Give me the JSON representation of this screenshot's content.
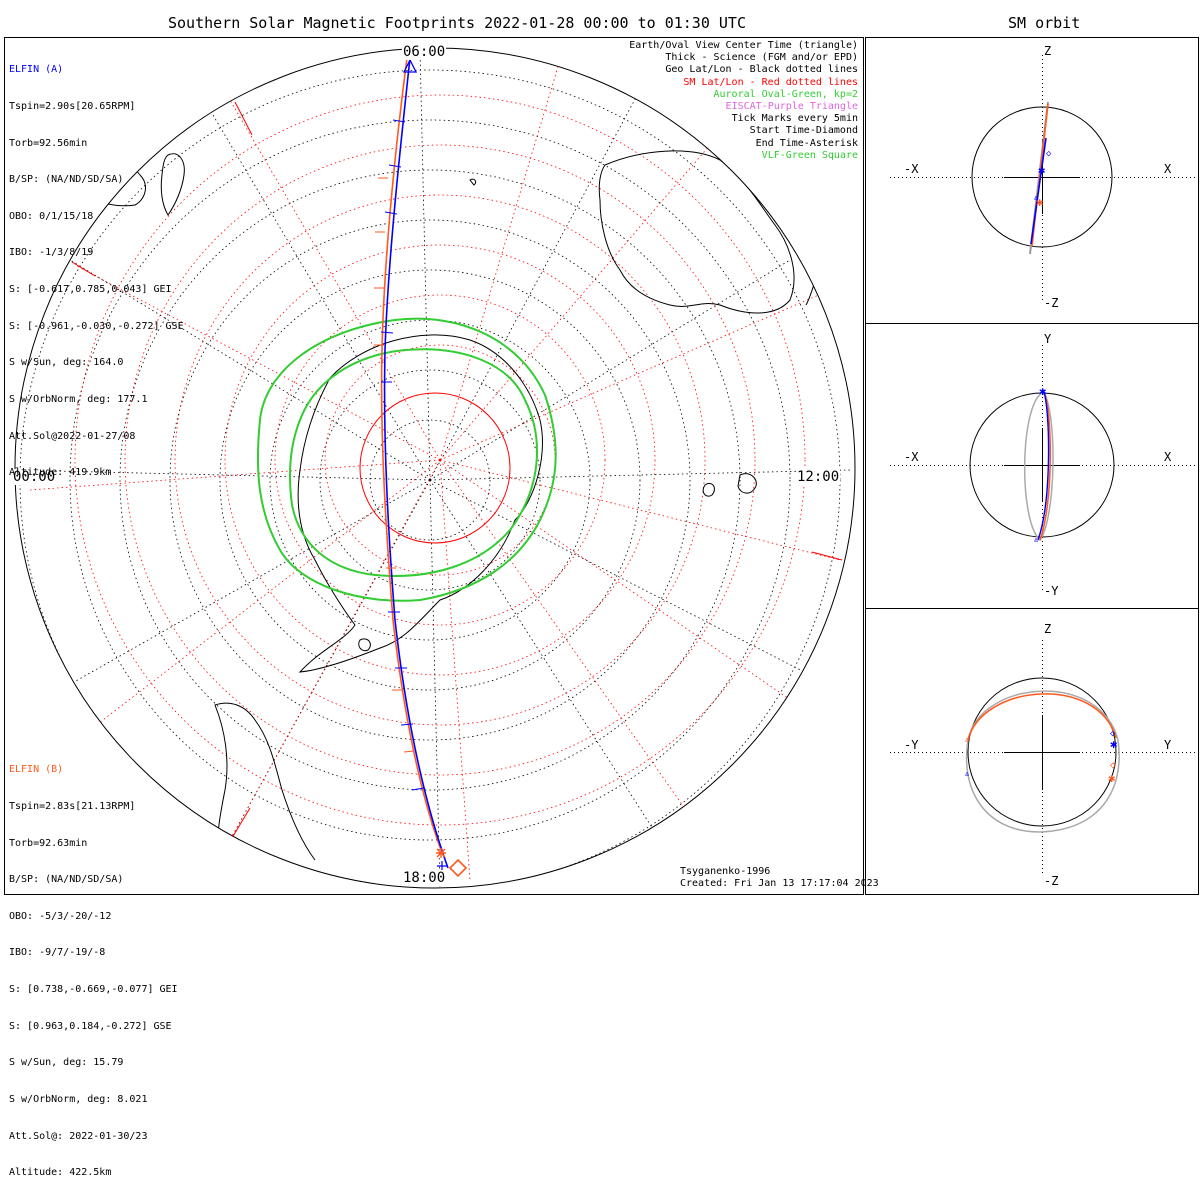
{
  "title": "Southern Solar Magnetic Footprints 2022-01-28 00:00 to 01:30 UTC",
  "orbit_title": "SM orbit",
  "time_labels": {
    "top": "06:00",
    "bottom": "18:00",
    "left": "00:00",
    "right": "12:00"
  },
  "elfin_a": {
    "name": "ELFIN (A)",
    "color": "#0000ff",
    "lines": [
      "Tspin=2.90s[20.65RPM]",
      "Torb=92.56min",
      "B/SP: (NA/ND/SD/SA)",
      "OBO: 0/1/15/18",
      "IBO: -1/3/8/19",
      "S: [-0.617,0.785,0.043] GEI",
      "S: [-0.961,-0.030,-0.272] GSE",
      "S w/Sun, deg: 164.0",
      "S w/OrbNorm, deg: 177.1",
      "Att.Sol@2022-01-27/08",
      "Altitude: 419.9km"
    ]
  },
  "elfin_b": {
    "name": "ELFIN (B)",
    "color": "#ff5a1e",
    "lines": [
      "Tspin=2.83s[21.13RPM]",
      "Torb=92.63min",
      "B/SP: (NA/ND/SD/SA)",
      "OBO: -5/3/-20/-12",
      "IBO: -9/7/-19/-8",
      "S: [0.738,-0.669,-0.077] GEI",
      "S: [0.963,0.184,-0.272] GSE",
      "S w/Sun, deg: 15.79",
      "S w/OrbNorm, deg: 8.021",
      "Att.Sol@: 2022-01-30/23",
      "Altitude: 422.5km"
    ]
  },
  "legend": [
    {
      "text": "Earth/Oval View Center Time (triangle)",
      "color": "#000000"
    },
    {
      "text": "Thick - Science (FGM and/or EPD)",
      "color": "#000000"
    },
    {
      "text": "Geo Lat/Lon - Black dotted lines",
      "color": "#000000"
    },
    {
      "text": "SM Lat/Lon - Red dotted lines",
      "color": "#ff0000"
    },
    {
      "text": "Auroral Oval-Green, kp=2",
      "color": "#33cc33"
    },
    {
      "text": "EISCAT-Purple Triangle",
      "color": "#dd66dd"
    },
    {
      "text": "Tick Marks every 5min",
      "color": "#000000"
    },
    {
      "text": "Start Time-Diamond",
      "color": "#000000"
    },
    {
      "text": "End Time-Asterisk",
      "color": "#000000"
    },
    {
      "text": "VLF-Green Square",
      "color": "#33cc33"
    }
  ],
  "footer": {
    "model": "Tsyganenko-1996",
    "created": "Created: Fri Jan 13 17:17:04 2023"
  },
  "orbit_panels": [
    {
      "h_neg": "-X",
      "h_pos": "X",
      "v_pos": "Z",
      "v_neg": "-Z"
    },
    {
      "h_neg": "-X",
      "h_pos": "X",
      "v_pos": "Y",
      "v_neg": "-Y"
    },
    {
      "h_neg": "-Y",
      "h_pos": "Y",
      "v_pos": "Z",
      "v_neg": "-Z"
    }
  ],
  "colors": {
    "elfin_a_track": "#0000ff",
    "elfin_b_track": "#ff5a1e",
    "sm_grid": "#ff0000",
    "geo_grid": "#000000",
    "auroral_oval": "#33cc33"
  }
}
